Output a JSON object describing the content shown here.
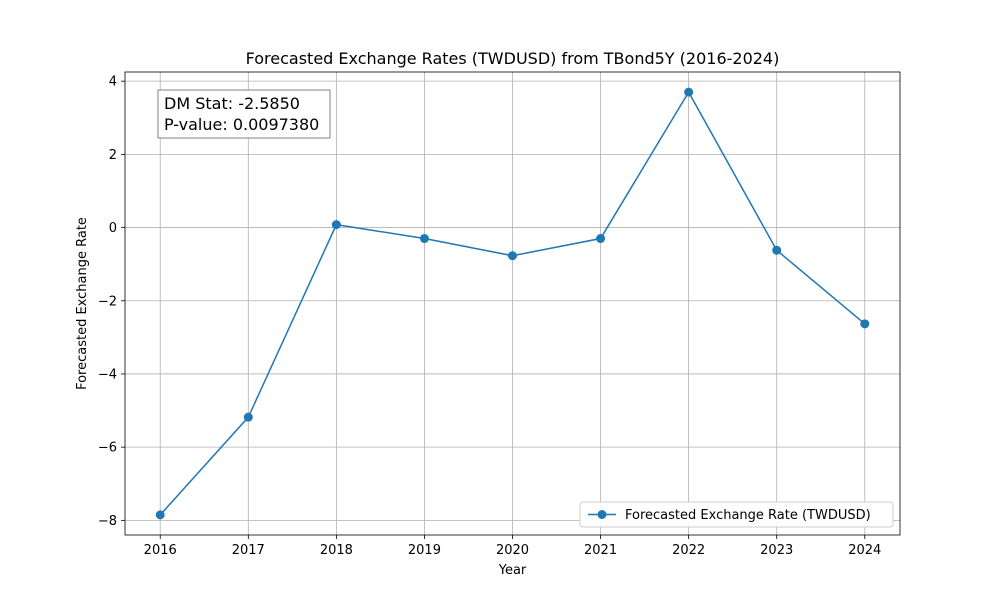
{
  "chart_data": {
    "type": "line",
    "title": "Forecasted Exchange Rates (TWDUSD) from TBond5Y (2016-2024)",
    "xlabel": "Year",
    "ylabel": "Forecasted Exchange Rate",
    "x": [
      "2016",
      "2017",
      "2018",
      "2019",
      "2020",
      "2021",
      "2022",
      "2023",
      "2024"
    ],
    "xlim": [
      2015.6,
      2024.4
    ],
    "ylim": [
      -8.4,
      4.25
    ],
    "yticks": [
      4,
      2,
      0,
      -2,
      -4,
      -6,
      -8
    ],
    "ytick_labels": [
      "4",
      "2",
      "0",
      "−2",
      "−4",
      "−6",
      "−8"
    ],
    "grid": true,
    "series": [
      {
        "name": "Forecasted Exchange Rate (TWDUSD)",
        "color": "#1f77b4",
        "marker": "circle",
        "values": [
          -7.85,
          -5.18,
          0.08,
          -0.3,
          -0.77,
          -0.3,
          3.7,
          -0.62,
          -2.63
        ]
      }
    ],
    "legend": {
      "placement": "lower-right"
    },
    "annotation": {
      "placement": "top-left",
      "lines": [
        "DM Stat: -2.5850",
        "P-value: 0.0097380"
      ]
    }
  }
}
